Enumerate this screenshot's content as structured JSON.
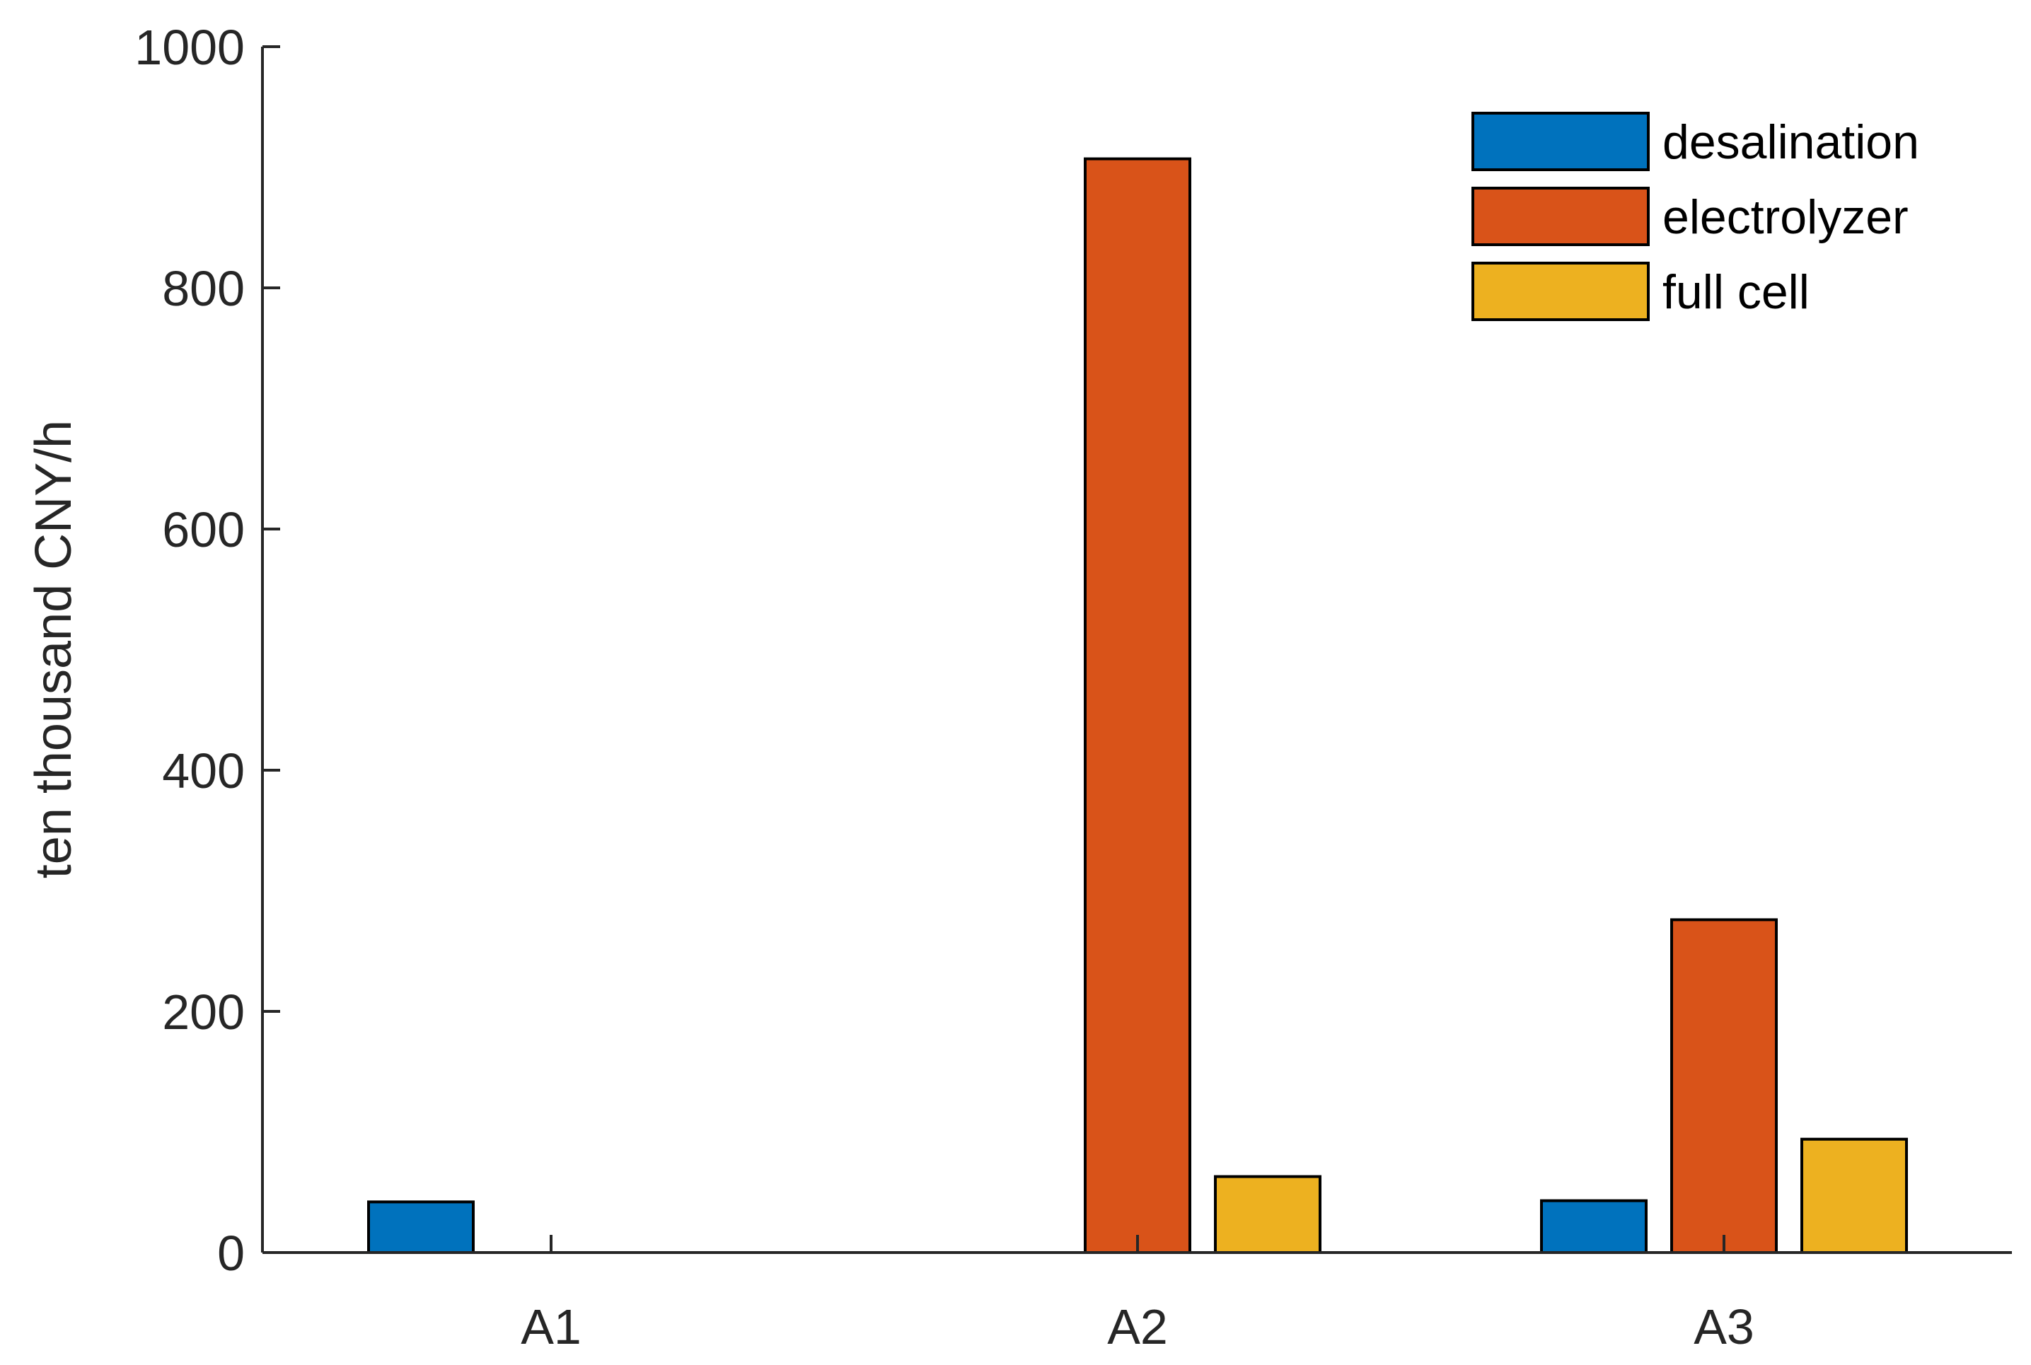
{
  "chart_data": {
    "type": "bar",
    "categories": [
      "A1",
      "A2",
      "A3"
    ],
    "series": [
      {
        "name": "desalination",
        "color": "#0072BD",
        "values": [
          42,
          0,
          43
        ]
      },
      {
        "name": "electrolyzer",
        "color": "#D95319",
        "values": [
          0,
          907,
          276
        ]
      },
      {
        "name": "full cell",
        "color": "#EDB120",
        "values": [
          0,
          63,
          94
        ]
      }
    ],
    "title": "",
    "xlabel": "",
    "ylabel": "ten thousand CNY/h",
    "ylim": [
      0,
      1000
    ],
    "yticks": [
      "0",
      "200",
      "400",
      "600",
      "800",
      "1000"
    ],
    "grid": false,
    "legend_position": "top-right"
  }
}
